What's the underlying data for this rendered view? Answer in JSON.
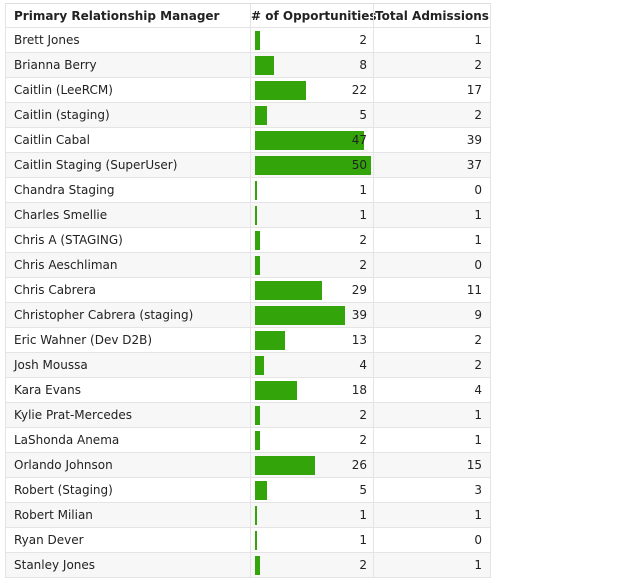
{
  "table": {
    "columns": [
      "Primary Relationship Manager",
      "# of Opportunities",
      "Total Admissions"
    ],
    "rows": [
      [
        "Brett Jones",
        2,
        1
      ],
      [
        "Brianna Berry",
        8,
        2
      ],
      [
        "Caitlin (LeeRCM)",
        22,
        17
      ],
      [
        "Caitlin (staging)",
        5,
        2
      ],
      [
        "Caitlin Cabal",
        47,
        39
      ],
      [
        "Caitlin Staging (SuperUser)",
        50,
        37
      ],
      [
        "Chandra Staging",
        1,
        0
      ],
      [
        "Charles Smellie",
        1,
        1
      ],
      [
        "Chris A (STAGING)",
        2,
        1
      ],
      [
        "Chris Aeschliman",
        2,
        0
      ],
      [
        "Chris Cabrera",
        29,
        11
      ],
      [
        "Christopher Cabrera (staging)",
        39,
        9
      ],
      [
        "Eric Wahner (Dev D2B)",
        13,
        2
      ],
      [
        "Josh Moussa",
        4,
        2
      ],
      [
        "Kara Evans",
        18,
        4
      ],
      [
        "Kylie Prat-Mercedes",
        2,
        1
      ],
      [
        "LaShonda Anema",
        2,
        1
      ],
      [
        "Orlando Johnson",
        26,
        15
      ],
      [
        "Robert (Staging)",
        5,
        3
      ],
      [
        "Robert Milian",
        1,
        1
      ],
      [
        "Ryan Dever",
        1,
        0
      ],
      [
        "Stanley Jones",
        2,
        1
      ]
    ],
    "bar_color": "#33a50b"
  }
}
